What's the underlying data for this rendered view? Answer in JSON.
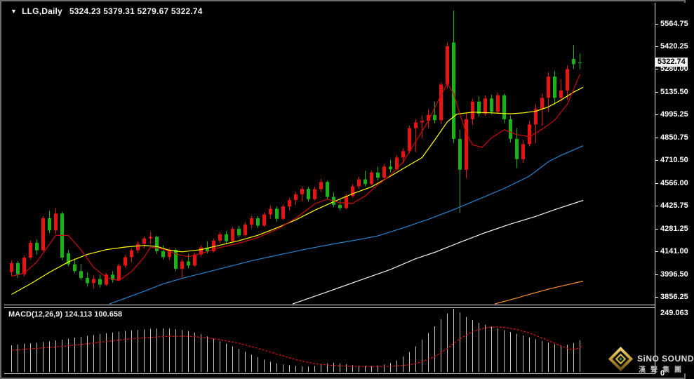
{
  "window": {
    "title": {
      "dropdown_icon": "▼",
      "symbol": "LLG,Daily",
      "ohlc_text": "5324.23 5379.31 5279.67 5322.74"
    }
  },
  "watermark": {
    "brand": "SiNO SOUND",
    "brand_cn": "漢聲集團"
  },
  "chart_data": {
    "type": "candlestick",
    "symbol": "LLG",
    "timeframe": "Daily",
    "convention_note": "red = bullish close>open, green = bearish close<open",
    "colors": {
      "background": "#000000",
      "bull": "#e81414",
      "bear": "#19b219",
      "histogram": "#c8c8c8",
      "signal": "#dd1111",
      "frame": "#e8e8e8"
    },
    "last_candle": {
      "open": 5324.23,
      "high": 5379.31,
      "low": 5279.67,
      "close": 5322.74
    },
    "price_axis": {
      "range_top": 5696.5,
      "range_bottom": 3807.9,
      "current_price": 5322.74,
      "current_price_label": "5322.74",
      "ticks": [
        {
          "label": "5564.75",
          "value": 5564.75
        },
        {
          "label": "5420.25",
          "value": 5420.25
        },
        {
          "label": "5280.00",
          "value": 5280.0
        },
        {
          "label": "5135.50",
          "value": 5135.5
        },
        {
          "label": "4995.25",
          "value": 4995.25
        },
        {
          "label": "4850.75",
          "value": 4850.75
        },
        {
          "label": "4710.50",
          "value": 4710.5
        },
        {
          "label": "4566.00",
          "value": 4566.0
        },
        {
          "label": "4425.75",
          "value": 4425.75
        },
        {
          "label": "4281.25",
          "value": 4281.25
        },
        {
          "label": "4141.00",
          "value": 4141.0
        },
        {
          "label": "3996.50",
          "value": 3996.5
        },
        {
          "label": "3856.25",
          "value": 3856.25
        }
      ]
    },
    "candles": [
      [
        4012,
        4085,
        3988,
        4068
      ],
      [
        4068,
        4080,
        3975,
        3998
      ],
      [
        3998,
        4115,
        3985,
        4102
      ],
      [
        4102,
        4210,
        4090,
        4195
      ],
      [
        4195,
        4215,
        4120,
        4148
      ],
      [
        4148,
        4360,
        4140,
        4348
      ],
      [
        4348,
        4395,
        4255,
        4272
      ],
      [
        4272,
        4412,
        4250,
        4378
      ],
      [
        4378,
        4390,
        4085,
        4102
      ],
      [
        4130,
        4150,
        4048,
        4060
      ],
      [
        4060,
        4098,
        4005,
        4018
      ],
      [
        4018,
        4062,
        3962,
        3975
      ],
      [
        3975,
        4010,
        3920,
        3942
      ],
      [
        3942,
        3990,
        3908,
        3968
      ],
      [
        3968,
        3995,
        3915,
        3932
      ],
      [
        3932,
        4005,
        3925,
        3995
      ],
      [
        3995,
        4018,
        3945,
        3962
      ],
      [
        3962,
        4065,
        3958,
        4052
      ],
      [
        4052,
        4118,
        4040,
        4105
      ],
      [
        4105,
        4160,
        4072,
        4148
      ],
      [
        4148,
        4205,
        4130,
        4188
      ],
      [
        4188,
        4235,
        4160,
        4222
      ],
      [
        4222,
        4262,
        4185,
        4232
      ],
      [
        4232,
        4240,
        4125,
        4142
      ],
      [
        4142,
        4178,
        4090,
        4105
      ],
      [
        4105,
        4162,
        4088,
        4150
      ],
      [
        4150,
        4158,
        4018,
        4032
      ],
      [
        4032,
        4092,
        3972,
        4078
      ],
      [
        4078,
        4122,
        4035,
        4052
      ],
      [
        4052,
        4135,
        4045,
        4122
      ],
      [
        4122,
        4180,
        4108,
        4165
      ],
      [
        4165,
        4205,
        4128,
        4142
      ],
      [
        4142,
        4222,
        4135,
        4208
      ],
      [
        4208,
        4262,
        4192,
        4248
      ],
      [
        4248,
        4268,
        4188,
        4205
      ],
      [
        4205,
        4295,
        4198,
        4282
      ],
      [
        4282,
        4302,
        4228,
        4242
      ],
      [
        4242,
        4322,
        4235,
        4308
      ],
      [
        4308,
        4365,
        4285,
        4348
      ],
      [
        4348,
        4362,
        4288,
        4302
      ],
      [
        4302,
        4385,
        4295,
        4372
      ],
      [
        4372,
        4428,
        4345,
        4408
      ],
      [
        4408,
        4422,
        4328,
        4345
      ],
      [
        4345,
        4435,
        4338,
        4422
      ],
      [
        4422,
        4475,
        4398,
        4462
      ],
      [
        4462,
        4512,
        4432,
        4498
      ],
      [
        4498,
        4548,
        4455,
        4532
      ],
      [
        4532,
        4545,
        4452,
        4468
      ],
      [
        4468,
        4545,
        4460,
        4530
      ],
      [
        4530,
        4595,
        4512,
        4575
      ],
      [
        4575,
        4582,
        4465,
        4482
      ],
      [
        4482,
        4510,
        4418,
        4432
      ],
      [
        4432,
        4472,
        4395,
        4412
      ],
      [
        4412,
        4502,
        4405,
        4488
      ],
      [
        4488,
        4562,
        4478,
        4548
      ],
      [
        4548,
        4608,
        4532,
        4592
      ],
      [
        4592,
        4645,
        4548,
        4562
      ],
      [
        4562,
        4648,
        4555,
        4635
      ],
      [
        4635,
        4672,
        4585,
        4602
      ],
      [
        4602,
        4688,
        4595,
        4672
      ],
      [
        4672,
        4715,
        4635,
        4655
      ],
      [
        4655,
        4742,
        4648,
        4728
      ],
      [
        4728,
        4785,
        4692,
        4768
      ],
      [
        4768,
        4928,
        4755,
        4912
      ],
      [
        4912,
        4968,
        4762,
        4948
      ],
      [
        4948,
        4992,
        4848,
        4958
      ],
      [
        4958,
        5032,
        4912,
        4995
      ],
      [
        4995,
        5078,
        4942,
        4962
      ],
      [
        4962,
        5198,
        4938,
        5185
      ],
      [
        5185,
        5448,
        5162,
        5425
      ],
      [
        5448,
        5648,
        4820,
        4845
      ],
      [
        4845,
        4902,
        4382,
        4652
      ],
      [
        4652,
        5005,
        4598,
        4968
      ],
      [
        4968,
        5095,
        4932,
        5078
      ],
      [
        5078,
        5112,
        4985,
        5002
      ],
      [
        5002,
        5118,
        4988,
        5098
      ],
      [
        5098,
        5122,
        4998,
        5015
      ],
      [
        5015,
        5135,
        5002,
        5118
      ],
      [
        5118,
        5128,
        4942,
        4968
      ],
      [
        4968,
        4992,
        4822,
        4845
      ],
      [
        4845,
        4912,
        4662,
        4718
      ],
      [
        4718,
        4838,
        4695,
        4812
      ],
      [
        4812,
        4958,
        4798,
        4935
      ],
      [
        4935,
        5062,
        4818,
        5032
      ],
      [
        5032,
        5128,
        4928,
        5102
      ],
      [
        5102,
        5262,
        5012,
        5235
      ],
      [
        5235,
        5272,
        5058,
        5102
      ],
      [
        5102,
        5218,
        5078,
        5148
      ],
      [
        5148,
        5305,
        5088,
        5282
      ],
      [
        5345,
        5432,
        5282,
        5312
      ],
      [
        5324.23,
        5379.31,
        5279.67,
        5322.74
      ]
    ],
    "ma_lines": [
      {
        "name": "ma-slowest-orange",
        "color": "#ff9133",
        "points": [
          [
            76.5,
            3812
          ],
          [
            79,
            3838
          ],
          [
            82,
            3872
          ],
          [
            85,
            3905
          ],
          [
            88,
            3932
          ],
          [
            90.5,
            3955
          ]
        ]
      },
      {
        "name": "ma-slower-white",
        "color": "#f2f2f2",
        "points": [
          [
            44.5,
            3812
          ],
          [
            50,
            3888
          ],
          [
            55,
            3958
          ],
          [
            60,
            4028
          ],
          [
            64,
            4095
          ],
          [
            67,
            4135
          ],
          [
            71,
            4198
          ],
          [
            75,
            4258
          ],
          [
            79,
            4312
          ],
          [
            83,
            4360
          ],
          [
            86,
            4402
          ],
          [
            90.5,
            4460
          ]
        ]
      },
      {
        "name": "ma-slow-blue",
        "color": "#2b84cc",
        "points": [
          [
            15.5,
            3812
          ],
          [
            18,
            3848
          ],
          [
            21,
            3892
          ],
          [
            24,
            3938
          ],
          [
            27,
            3972
          ],
          [
            30,
            4002
          ],
          [
            34,
            4042
          ],
          [
            38,
            4082
          ],
          [
            43,
            4125
          ],
          [
            47,
            4158
          ],
          [
            51,
            4188
          ],
          [
            55,
            4215
          ],
          [
            58,
            4238
          ],
          [
            62,
            4288
          ],
          [
            66,
            4342
          ],
          [
            70,
            4402
          ],
          [
            74,
            4468
          ],
          [
            78,
            4535
          ],
          [
            82,
            4612
          ],
          [
            85,
            4702
          ],
          [
            87,
            4742
          ],
          [
            90.5,
            4802
          ]
        ]
      },
      {
        "name": "ma-mid-yellow",
        "color": "#ffff00",
        "points": [
          [
            0,
            3872
          ],
          [
            3,
            3938
          ],
          [
            6,
            4010
          ],
          [
            9,
            4075
          ],
          [
            12,
            4122
          ],
          [
            15,
            4152
          ],
          [
            18,
            4168
          ],
          [
            21,
            4178
          ],
          [
            23,
            4172
          ],
          [
            25,
            4148
          ],
          [
            27,
            4138
          ],
          [
            30,
            4152
          ],
          [
            33,
            4180
          ],
          [
            36,
            4208
          ],
          [
            39,
            4242
          ],
          [
            42,
            4288
          ],
          [
            45,
            4338
          ],
          [
            48,
            4398
          ],
          [
            51,
            4452
          ],
          [
            54,
            4502
          ],
          [
            57,
            4545
          ],
          [
            60,
            4612
          ],
          [
            63,
            4682
          ],
          [
            65,
            4728
          ],
          [
            67,
            4838
          ],
          [
            69,
            4952
          ],
          [
            70.5,
            5000
          ],
          [
            73,
            5012
          ],
          [
            76,
            5008
          ],
          [
            79,
            5002
          ],
          [
            81,
            5008
          ],
          [
            83,
            5018
          ],
          [
            85,
            5045
          ],
          [
            87,
            5088
          ],
          [
            89,
            5138
          ],
          [
            90.5,
            5168
          ]
        ]
      },
      {
        "name": "ma-fast-red",
        "color": "#cf0a0a",
        "points": [
          [
            0,
            3985
          ],
          [
            2,
            4005
          ],
          [
            4,
            4075
          ],
          [
            6,
            4185
          ],
          [
            7,
            4242
          ],
          [
            9,
            4240
          ],
          [
            11,
            4150
          ],
          [
            13,
            4040
          ],
          [
            15,
            3978
          ],
          [
            17,
            3958
          ],
          [
            19,
            4015
          ],
          [
            21,
            4105
          ],
          [
            22,
            4168
          ],
          [
            24,
            4155
          ],
          [
            26,
            4125
          ],
          [
            28,
            4108
          ],
          [
            30,
            4128
          ],
          [
            33,
            4165
          ],
          [
            36,
            4192
          ],
          [
            39,
            4228
          ],
          [
            42,
            4278
          ],
          [
            45,
            4348
          ],
          [
            48,
            4438
          ],
          [
            50,
            4468
          ],
          [
            52,
            4445
          ],
          [
            54,
            4442
          ],
          [
            56,
            4488
          ],
          [
            58,
            4558
          ],
          [
            60,
            4618
          ],
          [
            62,
            4700
          ],
          [
            64,
            4828
          ],
          [
            66,
            4958
          ],
          [
            68,
            5120
          ],
          [
            69,
            5192
          ],
          [
            70,
            5128
          ],
          [
            71,
            4998
          ],
          [
            72,
            4880
          ],
          [
            73,
            4808
          ],
          [
            74.5,
            4792
          ],
          [
            76,
            4852
          ],
          [
            78,
            4902
          ],
          [
            80,
            4872
          ],
          [
            82,
            4858
          ],
          [
            84,
            4905
          ],
          [
            86,
            4962
          ],
          [
            88,
            5062
          ],
          [
            90,
            5250
          ]
        ]
      }
    ],
    "macd": {
      "label": "MACD(12,26,9)",
      "values_text": "124.113 100.658",
      "main_value": 124.113,
      "signal_value": 100.658,
      "axis": {
        "range_top": 249.1,
        "range_bottom": -5.5,
        "max_label": "249.063",
        "zero_label": "0"
      },
      "histogram": [
        104,
        107,
        110,
        112,
        114,
        117,
        120,
        123,
        126,
        130,
        134,
        137,
        141,
        144,
        148,
        151,
        154,
        157,
        160,
        162,
        164,
        166,
        168,
        169,
        170,
        169,
        167,
        164,
        160,
        154,
        147,
        139,
        130,
        120,
        110,
        100,
        90,
        79,
        68,
        58,
        48,
        40,
        34,
        29,
        26,
        24,
        22,
        21,
        24,
        28,
        33,
        36,
        34,
        30,
        27,
        25,
        24,
        23,
        25,
        29,
        35,
        45,
        60,
        78,
        100,
        125,
        152,
        178,
        205,
        228,
        246,
        232,
        215,
        202,
        192,
        184,
        177,
        170,
        163,
        156,
        149,
        142,
        135,
        128,
        121,
        114,
        108,
        103,
        106,
        113,
        124
      ],
      "signal_points": [
        [
          0,
          85
        ],
        [
          4,
          92
        ],
        [
          8,
          100
        ],
        [
          12,
          110
        ],
        [
          16,
          122
        ],
        [
          20,
          132
        ],
        [
          24,
          138
        ],
        [
          27,
          140
        ],
        [
          30,
          136
        ],
        [
          33,
          126
        ],
        [
          36,
          112
        ],
        [
          39,
          92
        ],
        [
          42,
          70
        ],
        [
          45,
          48
        ],
        [
          48,
          32
        ],
        [
          51,
          25
        ],
        [
          54,
          22
        ],
        [
          57,
          21
        ],
        [
          60,
          22
        ],
        [
          63,
          28
        ],
        [
          65,
          40
        ],
        [
          67,
          60
        ],
        [
          69,
          92
        ],
        [
          71,
          130
        ],
        [
          73,
          158
        ],
        [
          75,
          172
        ],
        [
          76.5,
          176
        ],
        [
          78,
          174
        ],
        [
          80,
          166
        ],
        [
          82,
          152
        ],
        [
          84,
          133
        ],
        [
          86,
          112
        ],
        [
          87.5,
          97
        ],
        [
          88.5,
          88
        ],
        [
          89.5,
          90
        ],
        [
          90.5,
          101
        ]
      ]
    }
  }
}
